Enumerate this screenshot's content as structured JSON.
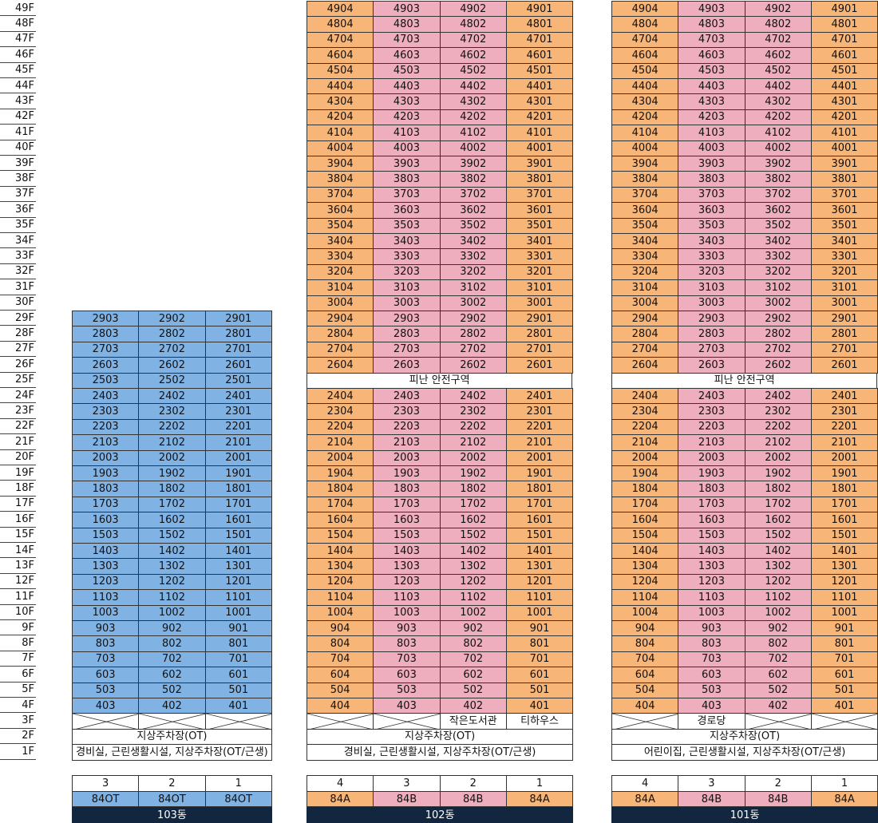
{
  "colors": {
    "orange": "#f7b678",
    "pink": "#eeaebd",
    "blue": "#80b3e4",
    "white": "#ffffff",
    "navy": "#13263f",
    "border": "#333333"
  },
  "floors": [
    "49F",
    "48F",
    "47F",
    "46F",
    "45F",
    "44F",
    "43F",
    "42F",
    "41F",
    "40F",
    "39F",
    "38F",
    "37F",
    "36F",
    "35F",
    "34F",
    "33F",
    "32F",
    "31F",
    "30F",
    "29F",
    "28F",
    "27F",
    "26F",
    "25F",
    "24F",
    "23F",
    "22F",
    "21F",
    "20F",
    "19F",
    "18F",
    "17F",
    "16F",
    "15F",
    "14F",
    "13F",
    "12F",
    "11F",
    "10F",
    "9F",
    "8F",
    "7F",
    "6F",
    "5F",
    "4F",
    "3F",
    "2F",
    "1F"
  ],
  "buildings": [
    {
      "id": "b103",
      "name": "103동",
      "top_floor": 29,
      "lines": [
        3,
        2,
        1
      ],
      "line_colors": [
        "blue",
        "blue",
        "blue"
      ],
      "types": [
        "84OT",
        "84OT",
        "84OT"
      ],
      "type_colors": [
        "blue",
        "blue",
        "blue"
      ],
      "refuge_floor": null,
      "refuge_label": "",
      "floor3": [
        {
          "label": "",
          "crossed": true
        },
        {
          "label": "",
          "crossed": true
        },
        {
          "label": "",
          "crossed": true
        }
      ],
      "floor2_label": "지상주차장(OT)",
      "floor1_label": "경비실, 근린생활시설, 지상주차장(OT/근생)"
    },
    {
      "id": "b102",
      "name": "102동",
      "top_floor": 49,
      "lines": [
        4,
        3,
        2,
        1
      ],
      "line_colors": [
        "orange",
        "pink",
        "pink",
        "orange"
      ],
      "types": [
        "84A",
        "84B",
        "84B",
        "84A"
      ],
      "type_colors": [
        "orange",
        "pink",
        "pink",
        "orange"
      ],
      "refuge_floor": 25,
      "refuge_label": "피난 안전구역",
      "floor3": [
        {
          "label": "",
          "crossed": true
        },
        {
          "label": "",
          "crossed": true
        },
        {
          "label": "작은도서관",
          "crossed": false
        },
        {
          "label": "티하우스",
          "crossed": false
        }
      ],
      "floor2_label": "지상주차장(OT)",
      "floor1_label": "경비실, 근린생활시설, 지상주차장(OT/근생)"
    },
    {
      "id": "b101",
      "name": "101동",
      "top_floor": 49,
      "lines": [
        4,
        3,
        2,
        1
      ],
      "line_colors": [
        "orange",
        "pink",
        "pink",
        "orange"
      ],
      "types": [
        "84A",
        "84B",
        "84B",
        "84A"
      ],
      "type_colors": [
        "orange",
        "pink",
        "pink",
        "orange"
      ],
      "refuge_floor": 25,
      "refuge_label": "피난 안전구역",
      "floor3": [
        {
          "label": "",
          "crossed": true
        },
        {
          "label": "경로당",
          "crossed": false
        },
        {
          "label": "",
          "crossed": true
        },
        {
          "label": "",
          "crossed": true
        }
      ],
      "floor2_label": "지상주차장(OT)",
      "floor1_label": "어린이집, 근린생활시설, 지상주차장(OT/근생)"
    }
  ]
}
